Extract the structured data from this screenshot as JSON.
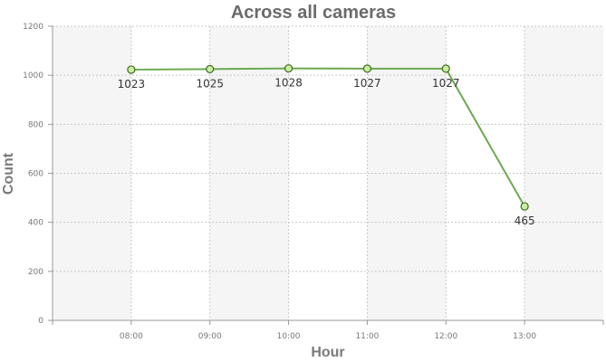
{
  "chart_data": {
    "type": "line",
    "title": "Across all cameras",
    "xlabel": "Hour",
    "ylabel": "Count",
    "categories": [
      "08:00",
      "09:00",
      "10:00",
      "11:00",
      "12:00",
      "13:00"
    ],
    "series": [
      {
        "values": [
          1023,
          1025,
          1028,
          1027,
          1027,
          465
        ]
      }
    ],
    "ylim": [
      0,
      1200
    ],
    "yticks": [
      "0",
      "200",
      "400",
      "600",
      "800",
      "1000",
      "1200"
    ],
    "grid": true,
    "data_labels": true,
    "colors": {
      "line": "#6aa84f",
      "marker_fill": "#c9f0a0",
      "marker_stroke": "#3d6b1f"
    }
  }
}
